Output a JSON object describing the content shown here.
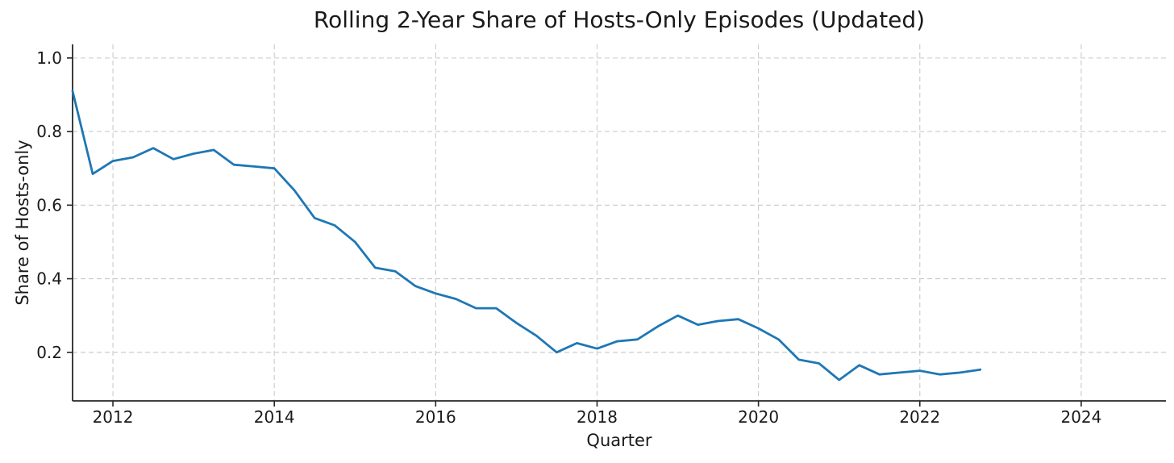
{
  "chart_data": {
    "type": "line",
    "title": "Rolling 2-Year Share of Hosts-Only Episodes (Updated)",
    "xlabel": "Quarter",
    "ylabel": "Share of Hosts-only",
    "xlim": [
      2011.5,
      2025.05
    ],
    "ylim": [
      0.068,
      1.037
    ],
    "xticks": [
      2012,
      2014,
      2016,
      2018,
      2020,
      2022,
      2024
    ],
    "yticks": [
      0.2,
      0.4,
      0.6,
      0.8,
      1.0
    ],
    "grid": true,
    "grid_style": "dashed",
    "legend": null,
    "line_color": "#1f77b4",
    "background_color": "#ffffff",
    "series": [
      {
        "name": "Share of Hosts-only",
        "x": [
          2011.5,
          2011.75,
          2012.0,
          2012.25,
          2012.5,
          2012.75,
          2013.0,
          2013.25,
          2013.5,
          2013.75,
          2014.0,
          2014.25,
          2014.5,
          2014.75,
          2015.0,
          2015.25,
          2015.5,
          2015.75,
          2016.0,
          2016.25,
          2016.5,
          2016.75,
          2017.0,
          2017.25,
          2017.5,
          2017.75,
          2018.0,
          2018.25,
          2018.5,
          2018.75,
          2019.0,
          2019.25,
          2019.5,
          2019.75,
          2020.0,
          2020.25,
          2020.5,
          2020.75,
          2021.0,
          2021.25,
          2021.5,
          2021.75,
          2022.0,
          2022.25,
          2022.5,
          2022.75
        ],
        "y": [
          0.91,
          0.685,
          0.72,
          0.73,
          0.755,
          0.725,
          0.74,
          0.75,
          0.71,
          0.705,
          0.7,
          0.64,
          0.565,
          0.545,
          0.5,
          0.43,
          0.42,
          0.38,
          0.36,
          0.345,
          0.32,
          0.32,
          0.28,
          0.245,
          0.2,
          0.225,
          0.21,
          0.23,
          0.235,
          0.27,
          0.3,
          0.275,
          0.285,
          0.29,
          0.265,
          0.235,
          0.18,
          0.17,
          0.125,
          0.165,
          0.14,
          0.145,
          0.15,
          0.14,
          0.145,
          0.153
        ]
      }
    ]
  }
}
